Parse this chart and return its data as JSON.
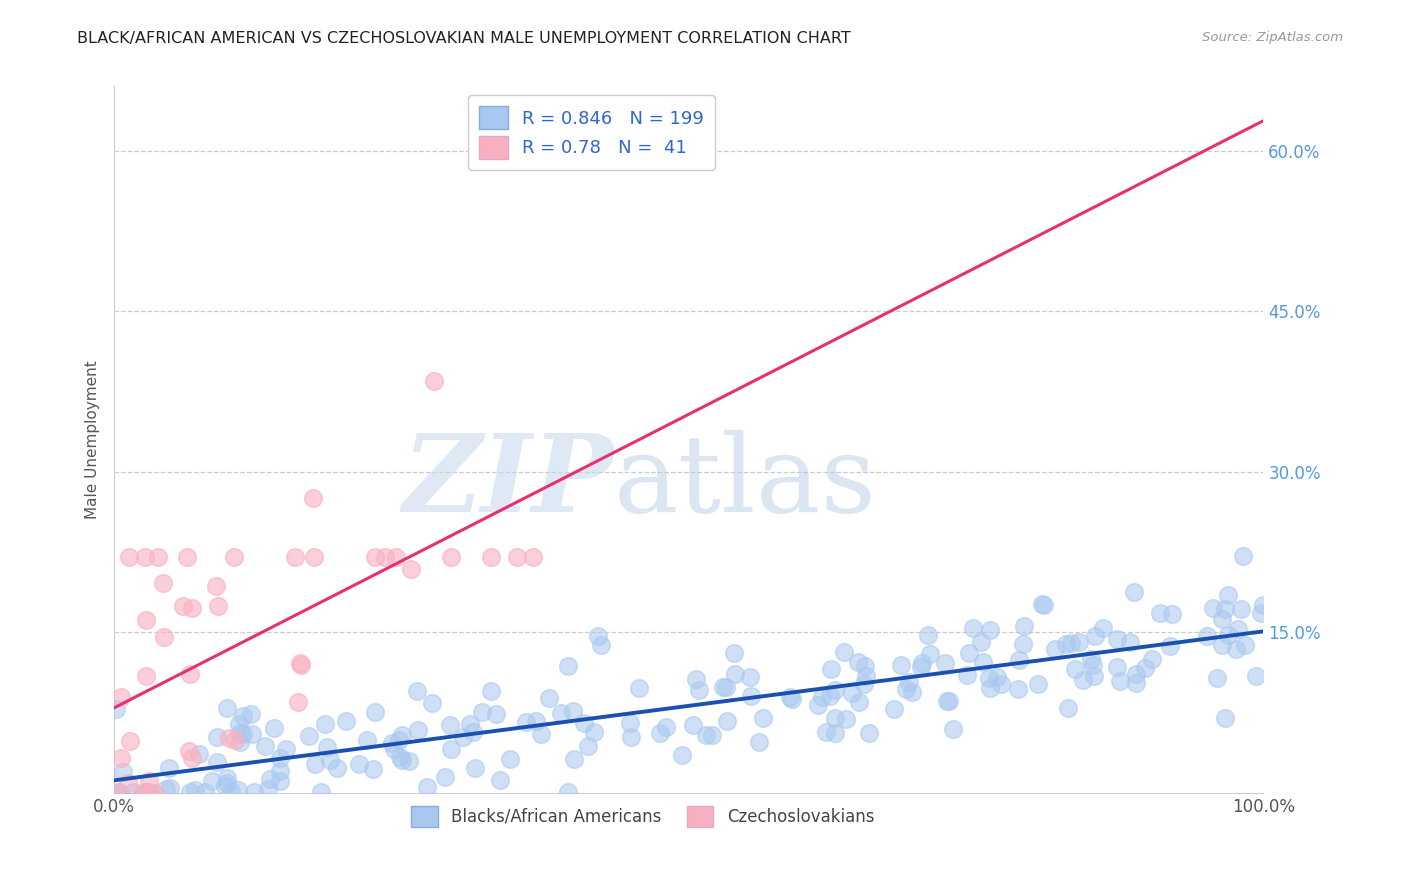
{
  "title": "BLACK/AFRICAN AMERICAN VS CZECHOSLOVAKIAN MALE UNEMPLOYMENT CORRELATION CHART",
  "source": "Source: ZipAtlas.com",
  "ylabel": "Male Unemployment",
  "yticks": [
    "15.0%",
    "30.0%",
    "45.0%",
    "60.0%"
  ],
  "ytick_vals": [
    0.15,
    0.3,
    0.45,
    0.6
  ],
  "ylim": [
    0,
    0.66
  ],
  "xlim": [
    0,
    1.0
  ],
  "blue_R": 0.846,
  "blue_N": 199,
  "pink_R": 0.78,
  "pink_N": 41,
  "blue_color": "#A8C8F0",
  "pink_color": "#F8B0C0",
  "blue_line_color": "#1A50B0",
  "pink_line_color": "#E83070",
  "legend_blue_label": "Blacks/African Americans",
  "legend_pink_label": "Czechoslovakians",
  "background_color": "#FFFFFF",
  "grid_color": "#CCCCCC",
  "title_color": "#222222",
  "source_color": "#999999",
  "ytick_color": "#5599DD",
  "xtick_color": "#555555",
  "ylabel_color": "#555555"
}
